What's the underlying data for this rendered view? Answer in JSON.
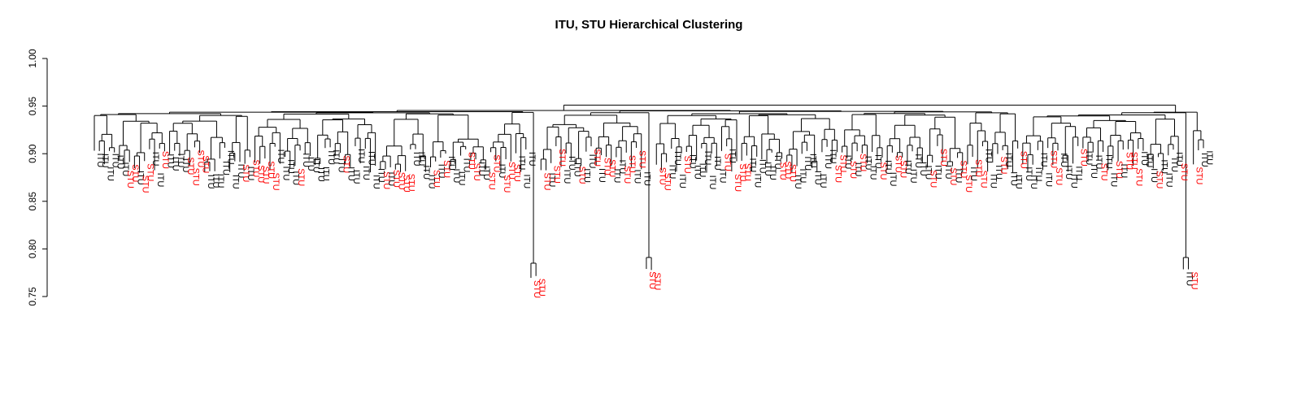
{
  "chart_data": {
    "type": "dendrogram",
    "title": "ITU, STU Hierarchical Clustering",
    "xlabel": "",
    "ylabel": "",
    "ylim": [
      0.75,
      1.0
    ],
    "y_ticks": [
      0.75,
      0.8,
      0.85,
      0.9,
      0.95,
      1.0
    ],
    "y_tick_labels": [
      "0.75",
      "0.80",
      "0.85",
      "0.90",
      "0.95",
      "1.00"
    ],
    "grid": false,
    "legend": "none",
    "label_colors": {
      "ITU": "#000000",
      "STU": "#ff0000"
    },
    "root_height": 0.951,
    "top_split_height": 0.944,
    "highlighted_leaves": [
      {
        "label": "STU",
        "merge_height": 0.785
      },
      {
        "label": "STU",
        "merge_height": 0.785
      },
      {
        "label": "STU",
        "merge_height": 0.791
      },
      {
        "label": "STU",
        "merge_height": 0.791
      },
      {
        "label": "ITU",
        "merge_height": 0.791
      },
      {
        "label": "STU",
        "merge_height": 0.791
      }
    ],
    "typical_leaf_merge_range": [
      0.875,
      0.945
    ]
  }
}
